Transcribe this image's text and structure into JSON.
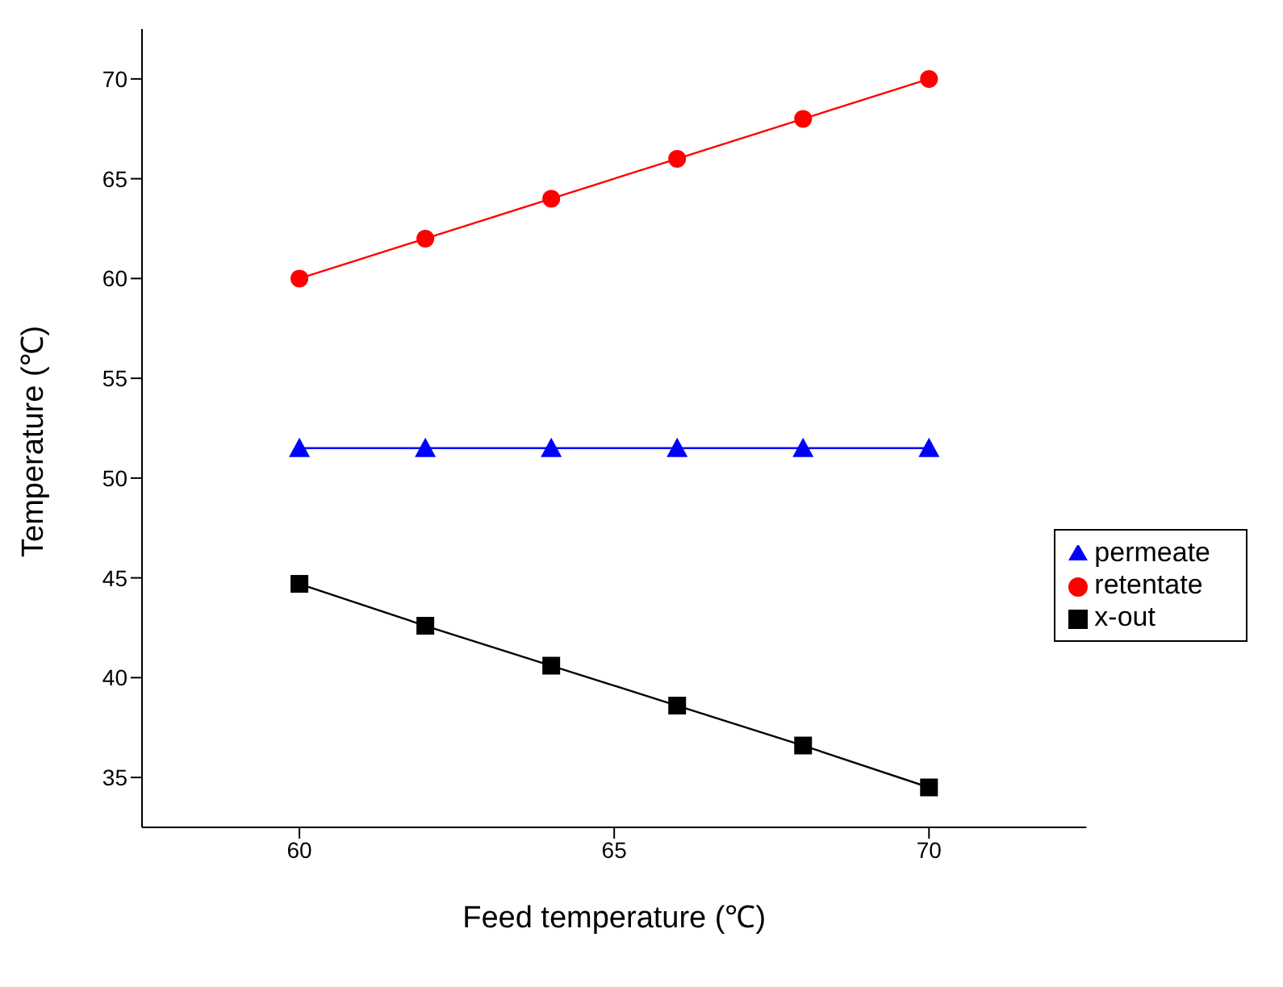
{
  "chart_data": {
    "type": "line",
    "xlabel": "Feed temperature (℃)",
    "ylabel": "Temperature (℃)",
    "x": [
      60,
      62,
      64,
      66,
      68,
      70
    ],
    "series": [
      {
        "name": "x-out",
        "color": "#000000",
        "marker": "square",
        "values": [
          44.7,
          42.6,
          40.6,
          38.6,
          36.6,
          34.5
        ]
      },
      {
        "name": "retentate",
        "color": "#ff0000",
        "marker": "circle",
        "values": [
          60,
          62,
          64,
          66,
          68,
          70
        ]
      },
      {
        "name": "permeate",
        "color": "#0000ff",
        "marker": "triangle",
        "values": [
          51.5,
          51.5,
          51.5,
          51.5,
          51.5,
          51.5
        ]
      }
    ],
    "xlim": [
      57.5,
      72.5
    ],
    "xticks": [
      60,
      65,
      70
    ],
    "ylim": [
      32.5,
      72.5
    ],
    "yticks": [
      35,
      40,
      45,
      50,
      55,
      60,
      65,
      70
    ],
    "grid": false,
    "legend": "right",
    "line_style": "solid"
  }
}
